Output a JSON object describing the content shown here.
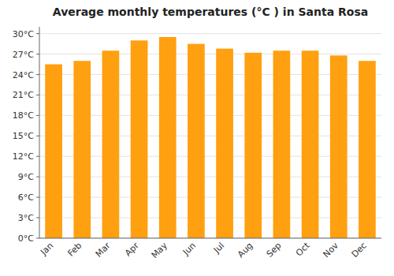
{
  "chart_data": {
    "type": "bar",
    "title": "Average monthly temperatures (°C ) in Santa Rosa",
    "categories": [
      "Jan",
      "Feb",
      "Mar",
      "Apr",
      "May",
      "Jun",
      "Jul",
      "Aug",
      "Sep",
      "Oct",
      "Nov",
      "Dec"
    ],
    "values": [
      25.5,
      26.0,
      27.5,
      29.0,
      29.5,
      28.5,
      27.8,
      27.2,
      27.5,
      27.5,
      26.8,
      26.0
    ],
    "color": "#FFA010",
    "ylim": [
      0,
      31
    ],
    "yticks": [
      {
        "value": 0,
        "label": "0°C"
      },
      {
        "value": 3,
        "label": "3°C"
      },
      {
        "value": 6,
        "label": "6°C"
      },
      {
        "value": 9,
        "label": "9°C"
      },
      {
        "value": 12,
        "label": "12°C"
      },
      {
        "value": 15,
        "label": "15°C"
      },
      {
        "value": 18,
        "label": "18°C"
      },
      {
        "value": 21,
        "label": "21°C"
      },
      {
        "value": 24,
        "label": "24°C"
      },
      {
        "value": 27,
        "label": "27°C"
      },
      {
        "value": 30,
        "label": "30°C"
      }
    ],
    "grid": true
  }
}
